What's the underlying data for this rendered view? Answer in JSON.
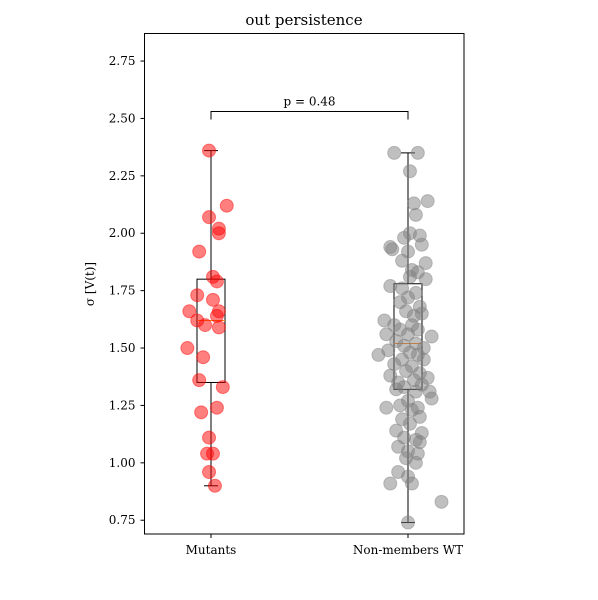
{
  "chart_data": {
    "type": "scatter",
    "title": "out persistence",
    "xlabel": "",
    "ylabel": "σ [V(t)]",
    "categories": [
      "Mutants",
      "Non-members WT"
    ],
    "ylim": [
      0.69,
      2.87
    ],
    "yticks": [
      0.75,
      1.0,
      1.25,
      1.5,
      1.75,
      2.0,
      2.25,
      2.5,
      2.75
    ],
    "ytick_labels": [
      "0.75",
      "1.00",
      "1.25",
      "1.50",
      "1.75",
      "2.00",
      "2.25",
      "2.50",
      "2.75"
    ],
    "annotation": {
      "text": "p = 0.48",
      "y": 2.53
    },
    "colors": {
      "Mutants": "#ff0000",
      "Non-members WT": "#808080",
      "median": "#ff7f0e"
    },
    "series": [
      {
        "name": "Mutants",
        "box": {
          "whisker_low": 0.9,
          "q1": 1.35,
          "median": 1.62,
          "q3": 1.8,
          "whisker_high": 2.36
        },
        "points": [
          {
            "x": -0.01,
            "y": 2.36
          },
          {
            "x": 0.08,
            "y": 2.12
          },
          {
            "x": -0.01,
            "y": 2.07
          },
          {
            "x": 0.04,
            "y": 2.02
          },
          {
            "x": -0.06,
            "y": 1.92
          },
          {
            "x": 0.04,
            "y": 2.0
          },
          {
            "x": 0.01,
            "y": 1.81
          },
          {
            "x": 0.03,
            "y": 1.79
          },
          {
            "x": -0.07,
            "y": 1.73
          },
          {
            "x": 0.01,
            "y": 1.71
          },
          {
            "x": -0.11,
            "y": 1.66
          },
          {
            "x": 0.04,
            "y": 1.66
          },
          {
            "x": 0.03,
            "y": 1.64
          },
          {
            "x": -0.07,
            "y": 1.62
          },
          {
            "x": -0.03,
            "y": 1.6
          },
          {
            "x": 0.04,
            "y": 1.59
          },
          {
            "x": -0.12,
            "y": 1.5
          },
          {
            "x": -0.04,
            "y": 1.46
          },
          {
            "x": -0.06,
            "y": 1.36
          },
          {
            "x": 0.06,
            "y": 1.33
          },
          {
            "x": 0.03,
            "y": 1.24
          },
          {
            "x": -0.05,
            "y": 1.22
          },
          {
            "x": -0.01,
            "y": 1.11
          },
          {
            "x": -0.02,
            "y": 1.04
          },
          {
            "x": 0.01,
            "y": 1.04
          },
          {
            "x": -0.01,
            "y": 0.96
          },
          {
            "x": 0.02,
            "y": 0.9
          }
        ]
      },
      {
        "name": "Non-members WT",
        "box": {
          "whisker_low": 0.74,
          "q1": 1.32,
          "median": 1.52,
          "q3": 1.78,
          "whisker_high": 2.35
        },
        "points": [
          {
            "x": -0.07,
            "y": 2.35
          },
          {
            "x": 0.05,
            "y": 2.35
          },
          {
            "x": 0.01,
            "y": 2.27
          },
          {
            "x": 0.1,
            "y": 2.14
          },
          {
            "x": 0.03,
            "y": 2.13
          },
          {
            "x": 0.04,
            "y": 2.08
          },
          {
            "x": 0.01,
            "y": 2.0
          },
          {
            "x": -0.02,
            "y": 1.98
          },
          {
            "x": 0.06,
            "y": 1.99
          },
          {
            "x": -0.09,
            "y": 1.94
          },
          {
            "x": -0.08,
            "y": 1.93
          },
          {
            "x": 0.07,
            "y": 1.95
          },
          {
            "x": 0.0,
            "y": 1.92
          },
          {
            "x": -0.03,
            "y": 1.88
          },
          {
            "x": 0.09,
            "y": 1.87
          },
          {
            "x": 0.02,
            "y": 1.84
          },
          {
            "x": 0.05,
            "y": 1.83
          },
          {
            "x": 0.01,
            "y": 1.81
          },
          {
            "x": 0.09,
            "y": 1.8
          },
          {
            "x": -0.09,
            "y": 1.77
          },
          {
            "x": -0.03,
            "y": 1.76
          },
          {
            "x": 0.04,
            "y": 1.74
          },
          {
            "x": 0.0,
            "y": 1.72
          },
          {
            "x": -0.04,
            "y": 1.7
          },
          {
            "x": 0.06,
            "y": 1.68
          },
          {
            "x": -0.01,
            "y": 1.66
          },
          {
            "x": 0.07,
            "y": 1.65
          },
          {
            "x": 0.03,
            "y": 1.64
          },
          {
            "x": -0.12,
            "y": 1.62
          },
          {
            "x": -0.07,
            "y": 1.6
          },
          {
            "x": 0.02,
            "y": 1.6
          },
          {
            "x": 0.05,
            "y": 1.58
          },
          {
            "x": -0.04,
            "y": 1.58
          },
          {
            "x": -0.11,
            "y": 1.56
          },
          {
            "x": 0.0,
            "y": 1.56
          },
          {
            "x": 0.12,
            "y": 1.55
          },
          {
            "x": -0.06,
            "y": 1.53
          },
          {
            "x": 0.04,
            "y": 1.52
          },
          {
            "x": -0.02,
            "y": 1.51
          },
          {
            "x": 0.08,
            "y": 1.5
          },
          {
            "x": -0.1,
            "y": 1.49
          },
          {
            "x": 0.01,
            "y": 1.48
          },
          {
            "x": -0.15,
            "y": 1.47
          },
          {
            "x": 0.05,
            "y": 1.47
          },
          {
            "x": -0.03,
            "y": 1.45
          },
          {
            "x": 0.08,
            "y": 1.45
          },
          {
            "x": -0.07,
            "y": 1.43
          },
          {
            "x": 0.02,
            "y": 1.42
          },
          {
            "x": -0.01,
            "y": 1.4
          },
          {
            "x": 0.06,
            "y": 1.39
          },
          {
            "x": -0.09,
            "y": 1.38
          },
          {
            "x": 0.1,
            "y": 1.37
          },
          {
            "x": 0.03,
            "y": 1.36
          },
          {
            "x": -0.05,
            "y": 1.35
          },
          {
            "x": 0.07,
            "y": 1.34
          },
          {
            "x": -0.02,
            "y": 1.33
          },
          {
            "x": -0.06,
            "y": 1.32
          },
          {
            "x": 0.04,
            "y": 1.31
          },
          {
            "x": 0.11,
            "y": 1.31
          },
          {
            "x": 0.12,
            "y": 1.28
          },
          {
            "x": 0.0,
            "y": 1.27
          },
          {
            "x": -0.04,
            "y": 1.25
          },
          {
            "x": -0.11,
            "y": 1.24
          },
          {
            "x": 0.05,
            "y": 1.24
          },
          {
            "x": 0.02,
            "y": 1.23
          },
          {
            "x": 0.06,
            "y": 1.2
          },
          {
            "x": -0.03,
            "y": 1.19
          },
          {
            "x": 0.01,
            "y": 1.17
          },
          {
            "x": -0.06,
            "y": 1.14
          },
          {
            "x": 0.07,
            "y": 1.13
          },
          {
            "x": -0.02,
            "y": 1.11
          },
          {
            "x": 0.04,
            "y": 1.1
          },
          {
            "x": 0.06,
            "y": 1.09
          },
          {
            "x": -0.05,
            "y": 1.07
          },
          {
            "x": 0.0,
            "y": 1.05
          },
          {
            "x": 0.05,
            "y": 1.04
          },
          {
            "x": -0.01,
            "y": 1.02
          },
          {
            "x": 0.04,
            "y": 1.0
          },
          {
            "x": -0.05,
            "y": 0.96
          },
          {
            "x": 0.0,
            "y": 0.94
          },
          {
            "x": -0.09,
            "y": 0.91
          },
          {
            "x": 0.02,
            "y": 0.91
          },
          {
            "x": 0.17,
            "y": 0.83
          },
          {
            "x": 0.0,
            "y": 0.74
          }
        ]
      }
    ]
  }
}
